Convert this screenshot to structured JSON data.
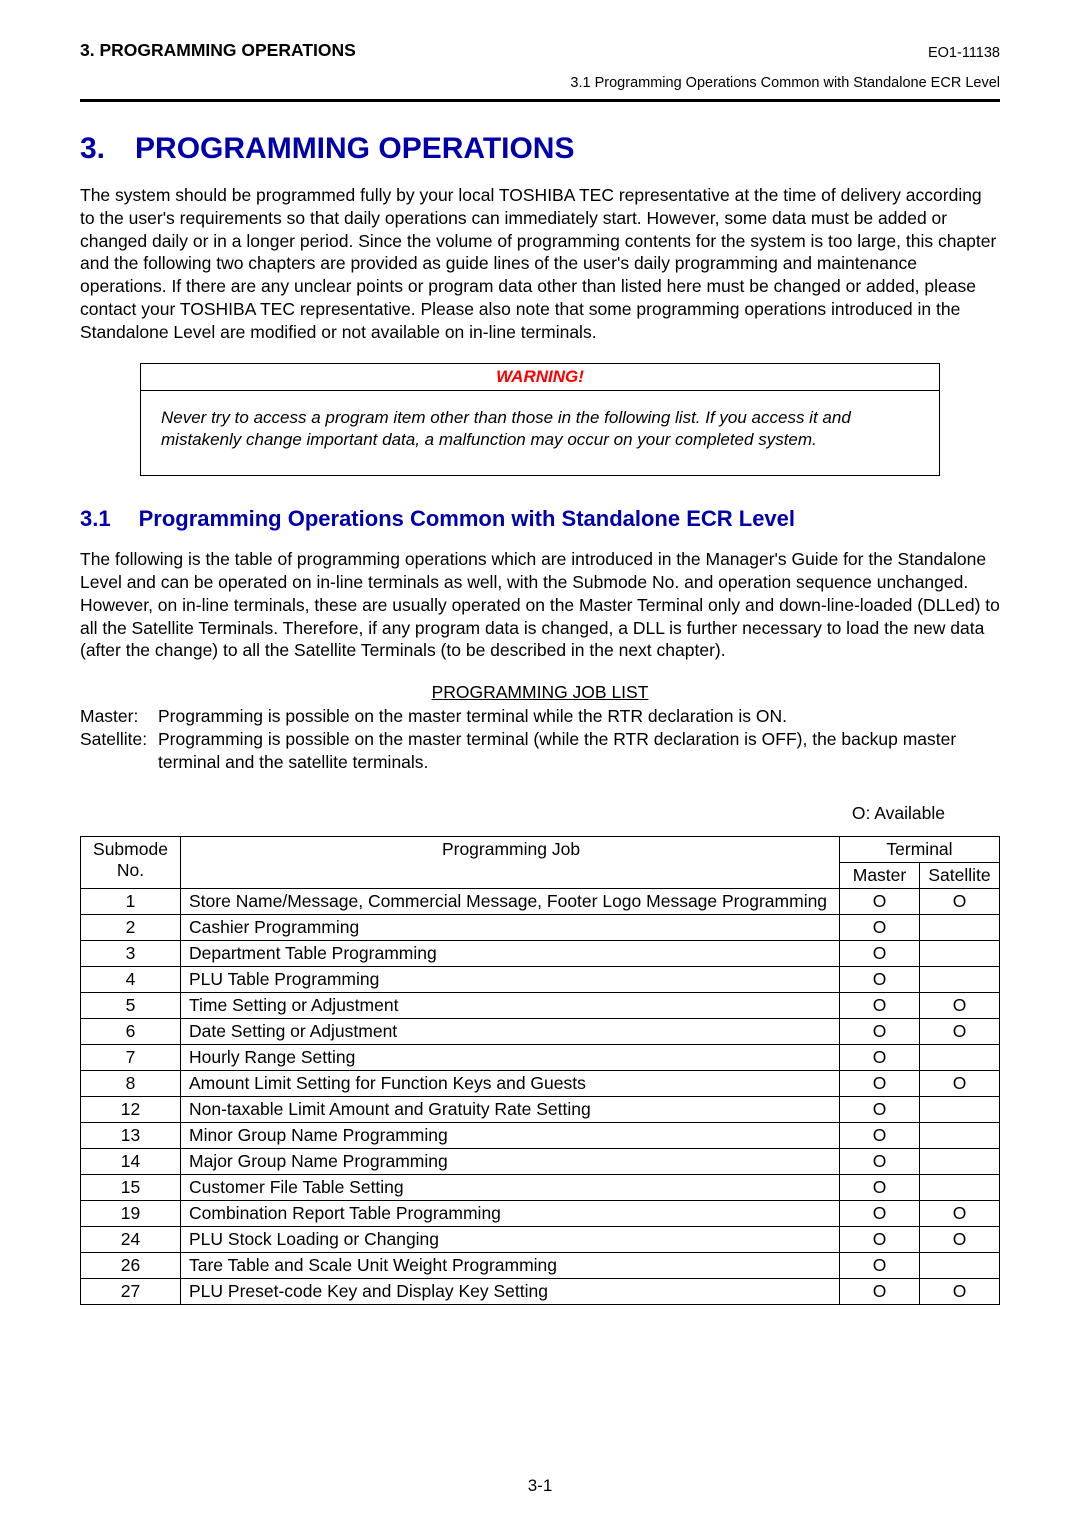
{
  "header": {
    "left": "3.   PROGRAMMING OPERATIONS",
    "right_code": "EO1-11138",
    "sub": "3.1  Programming Operations Common with Standalone ECR Level"
  },
  "chapter": {
    "number": "3.",
    "title": "PROGRAMMING OPERATIONS",
    "intro": "The system should be programmed fully by your local TOSHIBA TEC representative at the time of delivery according to the user's requirements so that daily operations can immediately start. However, some data must be added or changed daily or in a longer period. Since the volume of programming contents for the system is too large, this chapter and the following two chapters are provided as guide lines of the user's daily programming and maintenance operations. If there are any unclear points or program data other than listed here must be changed or added, please contact your TOSHIBA TEC representative. Please also note that some programming operations introduced in the Standalone Level are modified or not available on in-line terminals."
  },
  "warning": {
    "header": "WARNING!",
    "body": "Never try to access a program item other than those in the following list. If you access it and mistakenly change important data, a malfunction may occur on your completed system."
  },
  "section": {
    "number": "3.1",
    "title": "Programming Operations Common with Standalone ECR Level",
    "intro": "The following is the table of programming operations which are introduced in the Manager's Guide for the Standalone Level and can be operated on in-line terminals as well, with the Submode No. and operation sequence unchanged. However, on in-line terminals, these are usually operated on the Master Terminal only and down-line-loaded (DLLed) to all the Satellite Terminals. Therefore, if any program data is changed, a DLL is further necessary to load the new data (after the change) to all the Satellite Terminals (to be described in the next chapter)."
  },
  "job_list": {
    "title": "PROGRAMMING JOB LIST",
    "master_label": "Master:",
    "master_def": "Programming is possible on the master terminal while the RTR declaration is ON.",
    "satellite_label": "Satellite:",
    "satellite_def": "Programming is possible on the master terminal (while the RTR declaration is OFF), the backup master terminal and the satellite terminals.",
    "available_note": "O:  Available"
  },
  "table": {
    "headers": {
      "submode": "Submode",
      "no": "No.",
      "job": "Programming Job",
      "terminal": "Terminal",
      "master": "Master",
      "satellite": "Satellite"
    },
    "rows": [
      {
        "no": "1",
        "job": "Store Name/Message, Commercial Message, Footer Logo Message Programming",
        "master": "O",
        "satellite": "O"
      },
      {
        "no": "2",
        "job": "Cashier Programming",
        "master": "O",
        "satellite": ""
      },
      {
        "no": "3",
        "job": "Department Table Programming",
        "master": "O",
        "satellite": ""
      },
      {
        "no": "4",
        "job": "PLU Table Programming",
        "master": "O",
        "satellite": ""
      },
      {
        "no": "5",
        "job": "Time Setting or Adjustment",
        "master": "O",
        "satellite": "O"
      },
      {
        "no": "6",
        "job": "Date Setting or Adjustment",
        "master": "O",
        "satellite": "O"
      },
      {
        "no": "7",
        "job": "Hourly Range Setting",
        "master": "O",
        "satellite": ""
      },
      {
        "no": "8",
        "job": "Amount Limit Setting for Function Keys and Guests",
        "master": "O",
        "satellite": "O"
      },
      {
        "no": "12",
        "job": "Non-taxable Limit Amount and Gratuity Rate Setting",
        "master": "O",
        "satellite": ""
      },
      {
        "no": "13",
        "job": "Minor Group Name Programming",
        "master": "O",
        "satellite": ""
      },
      {
        "no": "14",
        "job": "Major Group Name Programming",
        "master": "O",
        "satellite": ""
      },
      {
        "no": "15",
        "job": "Customer File Table Setting",
        "master": "O",
        "satellite": ""
      },
      {
        "no": "19",
        "job": "Combination Report Table Programming",
        "master": "O",
        "satellite": "O"
      },
      {
        "no": "24",
        "job": "PLU Stock Loading or Changing",
        "master": "O",
        "satellite": "O"
      },
      {
        "no": "26",
        "job": "Tare Table and Scale Unit Weight Programming",
        "master": "O",
        "satellite": ""
      },
      {
        "no": "27",
        "job": "PLU Preset-code Key and Display Key Setting",
        "master": "O",
        "satellite": "O"
      }
    ]
  },
  "footer": "3-1"
}
